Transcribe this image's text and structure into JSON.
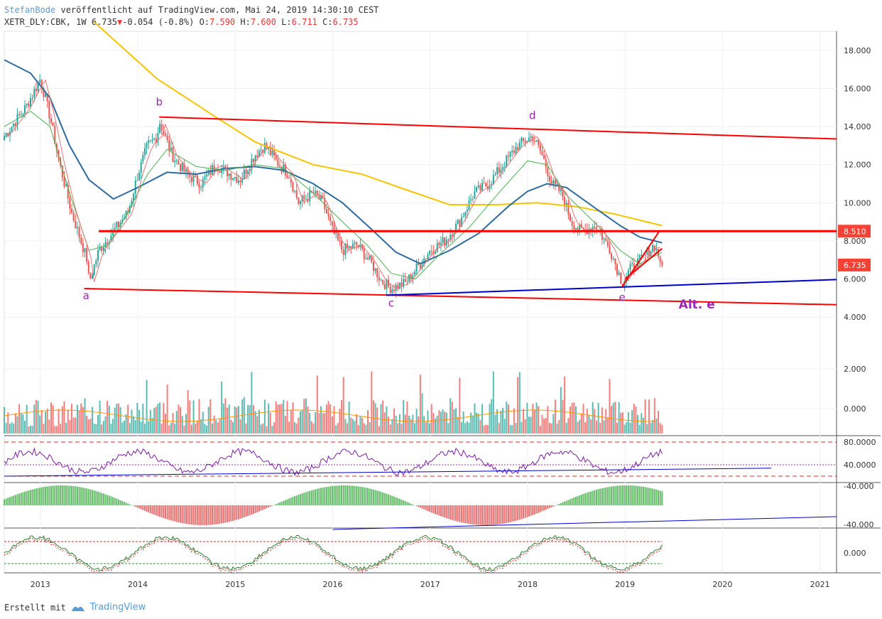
{
  "header": {
    "author": "StefanBode",
    "published": "veröffentlicht auf TradingView.com, Mai 24, 2019 14:30:10 CEST",
    "symbol": "XETR_DLY:CBK, 1W",
    "last": "6.735",
    "change": "-0.054 (-0.8%)",
    "open_label": "O:",
    "open": "7.590",
    "high_label": "H:",
    "high": "7.600",
    "low_label": "L:",
    "low": "6.711",
    "close_label": "C:",
    "close": "6.735"
  },
  "footer": {
    "created_with": "Erstellt mit",
    "brand": "TradingView"
  },
  "colors": {
    "candle_up": "#26a69a",
    "candle_down": "#ef5350",
    "line_red": "#ff0000",
    "line_blue": "#0000cc",
    "ma_yellow": "#f5c400",
    "ma_blue": "#2e6b9e",
    "ma_green": "#4caf50",
    "wave_label": "#9c27b0",
    "grid": "#eef0f3"
  },
  "chart_data": [
    {
      "type": "candlestick",
      "x_axis": {
        "ticks": [
          "2013",
          "2014",
          "2015",
          "2016",
          "2017",
          "2018",
          "2019",
          "2020",
          "2021"
        ],
        "range": [
          2012.63,
          2021.17
        ]
      },
      "y_axis": {
        "ticks": [
          "4.000",
          "6.000",
          "8.000",
          "10.000",
          "12.000",
          "14.000",
          "16.000",
          "18.000"
        ],
        "range": [
          3.3,
          19.0
        ]
      },
      "price_anchors": [
        [
          2012.63,
          13.5
        ],
        [
          2012.85,
          15.0
        ],
        [
          2013.0,
          16.5
        ],
        [
          2013.1,
          14.5
        ],
        [
          2013.2,
          12.0
        ],
        [
          2013.32,
          9.5
        ],
        [
          2013.48,
          7.0
        ],
        [
          2013.5,
          5.8
        ],
        [
          2013.6,
          7.5
        ],
        [
          2013.75,
          8.5
        ],
        [
          2013.9,
          9.5
        ],
        [
          2014.0,
          11.5
        ],
        [
          2014.1,
          13.0
        ],
        [
          2014.2,
          13.5
        ],
        [
          2014.22,
          14.3
        ],
        [
          2014.35,
          12.5
        ],
        [
          2014.5,
          11.5
        ],
        [
          2014.65,
          11.0
        ],
        [
          2014.8,
          12.0
        ],
        [
          2014.95,
          11.5
        ],
        [
          2015.05,
          11.2
        ],
        [
          2015.2,
          12.5
        ],
        [
          2015.3,
          13.0
        ],
        [
          2015.45,
          12.0
        ],
        [
          2015.55,
          11.5
        ],
        [
          2015.65,
          10.0
        ],
        [
          2015.8,
          10.5
        ],
        [
          2015.9,
          10.0
        ],
        [
          2016.0,
          8.5
        ],
        [
          2016.1,
          7.5
        ],
        [
          2016.25,
          7.8
        ],
        [
          2016.4,
          6.8
        ],
        [
          2016.5,
          5.9
        ],
        [
          2016.6,
          5.5
        ],
        [
          2016.75,
          5.8
        ],
        [
          2016.85,
          6.5
        ],
        [
          2017.0,
          7.5
        ],
        [
          2017.15,
          8.0
        ],
        [
          2017.3,
          9.0
        ],
        [
          2017.45,
          10.5
        ],
        [
          2017.6,
          11.0
        ],
        [
          2017.75,
          12.0
        ],
        [
          2017.9,
          13.0
        ],
        [
          2018.05,
          13.5
        ],
        [
          2018.15,
          12.5
        ],
        [
          2018.25,
          11.0
        ],
        [
          2018.35,
          10.5
        ],
        [
          2018.45,
          9.0
        ],
        [
          2018.55,
          8.5
        ],
        [
          2018.7,
          8.8
        ],
        [
          2018.85,
          7.5
        ],
        [
          2018.97,
          5.8
        ],
        [
          2019.05,
          6.5
        ],
        [
          2019.2,
          7.2
        ],
        [
          2019.3,
          7.8
        ],
        [
          2019.38,
          6.735
        ]
      ],
      "moving_averages": [
        {
          "color_key": "ma_yellow",
          "points": [
            [
              2013.55,
              19.5
            ],
            [
              2014.2,
              16.5
            ],
            [
              2014.8,
              14.5
            ],
            [
              2015.2,
              13.2
            ],
            [
              2015.8,
              12.0
            ],
            [
              2016.3,
              11.5
            ],
            [
              2016.8,
              10.6
            ],
            [
              2017.2,
              9.9
            ],
            [
              2017.7,
              9.9
            ],
            [
              2018.1,
              10.0
            ],
            [
              2018.5,
              9.8
            ],
            [
              2018.9,
              9.4
            ],
            [
              2019.38,
              8.8
            ]
          ]
        },
        {
          "color_key": "ma_blue",
          "points": [
            [
              2012.63,
              17.5
            ],
            [
              2012.9,
              16.8
            ],
            [
              2013.1,
              15.5
            ],
            [
              2013.3,
              13.0
            ],
            [
              2013.5,
              11.2
            ],
            [
              2013.75,
              10.2
            ],
            [
              2014.0,
              10.8
            ],
            [
              2014.3,
              11.6
            ],
            [
              2014.6,
              11.5
            ],
            [
              2014.9,
              11.8
            ],
            [
              2015.2,
              11.9
            ],
            [
              2015.5,
              11.7
            ],
            [
              2015.8,
              11.0
            ],
            [
              2016.1,
              10.0
            ],
            [
              2016.4,
              8.6
            ],
            [
              2016.65,
              7.4
            ],
            [
              2016.9,
              6.8
            ],
            [
              2017.2,
              7.5
            ],
            [
              2017.5,
              8.4
            ],
            [
              2017.8,
              9.8
            ],
            [
              2018.0,
              10.6
            ],
            [
              2018.2,
              11.0
            ],
            [
              2018.4,
              10.8
            ],
            [
              2018.7,
              9.7
            ],
            [
              2018.95,
              8.8
            ],
            [
              2019.15,
              8.2
            ],
            [
              2019.38,
              7.9
            ]
          ]
        },
        {
          "color_key": "ma_green",
          "points": [
            [
              2012.63,
              14.0
            ],
            [
              2012.9,
              14.8
            ],
            [
              2013.1,
              14.0
            ],
            [
              2013.3,
              10.5
            ],
            [
              2013.5,
              7.5
            ],
            [
              2013.7,
              7.8
            ],
            [
              2013.9,
              9.5
            ],
            [
              2014.1,
              11.5
            ],
            [
              2014.3,
              12.8
            ],
            [
              2014.6,
              11.9
            ],
            [
              2014.9,
              11.7
            ],
            [
              2015.2,
              12.0
            ],
            [
              2015.5,
              11.8
            ],
            [
              2015.8,
              10.5
            ],
            [
              2016.1,
              9.0
            ],
            [
              2016.35,
              7.8
            ],
            [
              2016.6,
              6.3
            ],
            [
              2016.85,
              6.0
            ],
            [
              2017.1,
              7.3
            ],
            [
              2017.4,
              8.7
            ],
            [
              2017.7,
              10.5
            ],
            [
              2018.0,
              12.2
            ],
            [
              2018.2,
              12.0
            ],
            [
              2018.4,
              10.4
            ],
            [
              2018.7,
              8.9
            ],
            [
              2018.95,
              7.5
            ],
            [
              2019.15,
              6.8
            ],
            [
              2019.38,
              7.4
            ]
          ]
        }
      ],
      "trend_lines": [
        {
          "color_key": "line_red",
          "from": [
            2014.22,
            14.5
          ],
          "to": [
            2021.17,
            13.35
          ]
        },
        {
          "color_key": "line_red",
          "from": [
            2013.45,
            5.5
          ],
          "to": [
            2021.17,
            4.65
          ]
        },
        {
          "color_key": "line_red",
          "from": [
            2013.6,
            8.51
          ],
          "to": [
            2021.17,
            8.51
          ],
          "thick": true
        },
        {
          "color_key": "line_blue",
          "from": [
            2016.55,
            5.15
          ],
          "to": [
            2021.17,
            5.97
          ]
        },
        {
          "color_key": "line_red",
          "from": [
            2018.97,
            5.6
          ],
          "to": [
            2019.35,
            8.5
          ]
        },
        {
          "color_key": "line_red",
          "from": [
            2019.0,
            6.0
          ],
          "to": [
            2019.38,
            7.6
          ]
        }
      ],
      "price_labels": [
        {
          "value": "8.510",
          "y": 8.51
        },
        {
          "value": "6.735",
          "y": 6.735
        }
      ],
      "wave_labels": [
        {
          "text": "b",
          "x": 2014.22,
          "y": 15.1
        },
        {
          "text": "a",
          "x": 2013.47,
          "y": 4.95
        },
        {
          "text": "c",
          "x": 2016.6,
          "y": 4.55
        },
        {
          "text": "d",
          "x": 2018.05,
          "y": 14.4
        },
        {
          "text": "e",
          "x": 2018.97,
          "y": 4.85
        },
        {
          "text": "Alt. e",
          "x": 2019.55,
          "y": 4.45
        }
      ]
    },
    {
      "type": "bar",
      "name": "volume",
      "y_axis": {
        "ticks": [
          "2.000",
          "0.000"
        ]
      }
    },
    {
      "type": "line",
      "name": "rsi",
      "y_axis": {
        "ticks": [
          "80.0000",
          "40.0000"
        ],
        "range": [
          10,
          90
        ]
      },
      "trend_line": {
        "from": [
          2012.63,
          20
        ],
        "to": [
          2020.5,
          34
        ]
      }
    },
    {
      "type": "bar",
      "name": "macd_histogram",
      "y_axis": {
        "ticks": [
          "-40.000",
          "-40.000"
        ]
      }
    },
    {
      "type": "line",
      "name": "stochastic",
      "y_axis": {
        "ticks": [
          "0.000"
        ]
      }
    }
  ]
}
